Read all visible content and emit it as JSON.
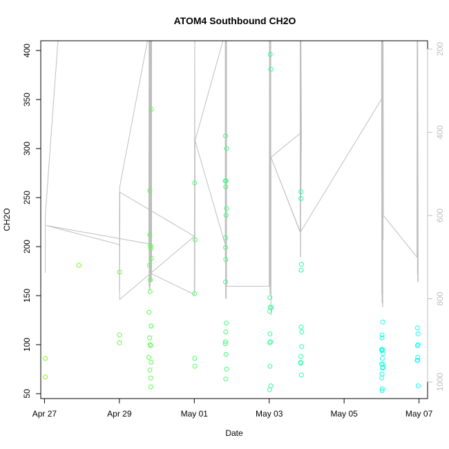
{
  "chart_data": {
    "type": "scatter",
    "title": "ATOM4 Southbound CH2O",
    "xlabel": "Date",
    "ylabel": "CH2O",
    "xlim": [
      "2018-04-26T21:36",
      "2018-05-07T05:30"
    ],
    "ylim": [
      45,
      410
    ],
    "x_ticks": [
      {
        "date": "2018-04-27",
        "label": "Apr 27"
      },
      {
        "date": "2018-04-29",
        "label": "Apr 29"
      },
      {
        "date": "2018-05-01",
        "label": "May 01"
      },
      {
        "date": "2018-05-03",
        "label": "May 03"
      },
      {
        "date": "2018-05-05",
        "label": "May 05"
      },
      {
        "date": "2018-05-07",
        "label": "May 07"
      }
    ],
    "y_ticks": [
      50,
      100,
      150,
      200,
      250,
      300,
      350,
      400
    ],
    "right_axis": {
      "reversed": true,
      "ylim": [
        1040,
        180
      ],
      "ticks": [
        200,
        400,
        600,
        800,
        1000
      ],
      "color": "#bebebe"
    },
    "grid": false,
    "legend": "none",
    "points_color_from": "#7cfc00",
    "points_color_to": "#00ffff",
    "points": [
      [
        "2018-04-27T00:30",
        86
      ],
      [
        "2018-04-27T00:30",
        67
      ],
      [
        "2018-04-27T22:00",
        181
      ],
      [
        "2018-04-29T00:00",
        110
      ],
      [
        "2018-04-29T00:00",
        102
      ],
      [
        "2018-04-29T00:10",
        174
      ],
      [
        "2018-04-29T18:50",
        87
      ],
      [
        "2018-04-29T19:00",
        133
      ],
      [
        "2018-04-29T19:20",
        181
      ],
      [
        "2018-04-29T19:20",
        107
      ],
      [
        "2018-04-29T19:30",
        212
      ],
      [
        "2018-04-29T19:30",
        257
      ],
      [
        "2018-04-29T19:30",
        74
      ],
      [
        "2018-04-29T19:40",
        154
      ],
      [
        "2018-04-29T19:40",
        100
      ],
      [
        "2018-04-29T19:50",
        201
      ],
      [
        "2018-04-29T19:50",
        166
      ],
      [
        "2018-04-29T20:00",
        99
      ],
      [
        "2018-04-29T20:10",
        198
      ],
      [
        "2018-04-29T20:10",
        66
      ],
      [
        "2018-04-29T20:10",
        57
      ],
      [
        "2018-04-29T20:20",
        119
      ],
      [
        "2018-04-29T20:20",
        119
      ],
      [
        "2018-04-29T20:20",
        82
      ],
      [
        "2018-04-29T20:30",
        188
      ],
      [
        "2018-04-29T20:30",
        340
      ],
      [
        "2018-05-01T00:10",
        265
      ],
      [
        "2018-05-01T00:10",
        152
      ],
      [
        "2018-05-01T00:10",
        86
      ],
      [
        "2018-05-01T00:20",
        78
      ],
      [
        "2018-05-01T00:30",
        207
      ],
      [
        "2018-05-01T19:50",
        267
      ],
      [
        "2018-05-01T19:50",
        101
      ],
      [
        "2018-05-01T20:00",
        313
      ],
      [
        "2018-05-01T20:00",
        209
      ],
      [
        "2018-05-01T20:00",
        199
      ],
      [
        "2018-05-01T20:00",
        164
      ],
      [
        "2018-05-01T20:00",
        103
      ],
      [
        "2018-05-01T20:10",
        261
      ],
      [
        "2018-05-01T20:10",
        187
      ],
      [
        "2018-05-01T20:10",
        113
      ],
      [
        "2018-05-01T20:10",
        65
      ],
      [
        "2018-05-01T20:20",
        90
      ],
      [
        "2018-05-01T20:20",
        267
      ],
      [
        "2018-05-01T20:20",
        232
      ],
      [
        "2018-05-01T20:30",
        122
      ],
      [
        "2018-05-01T20:40",
        300
      ],
      [
        "2018-05-01T20:40",
        239
      ],
      [
        "2018-05-01T20:40",
        75
      ],
      [
        "2018-05-03T00:10",
        54
      ],
      [
        "2018-05-03T00:20",
        102
      ],
      [
        "2018-05-03T00:20",
        134
      ],
      [
        "2018-05-03T00:30",
        148
      ],
      [
        "2018-05-03T00:30",
        111
      ],
      [
        "2018-05-03T00:30",
        78
      ],
      [
        "2018-05-03T00:40",
        396
      ],
      [
        "2018-05-03T00:40",
        138
      ],
      [
        "2018-05-03T00:50",
        103
      ],
      [
        "2018-05-03T01:00",
        381
      ],
      [
        "2018-05-03T01:00",
        58
      ],
      [
        "2018-05-03T01:20",
        138
      ],
      [
        "2018-05-03T20:10",
        81
      ],
      [
        "2018-05-03T20:10",
        82
      ],
      [
        "2018-05-03T20:20",
        256
      ],
      [
        "2018-05-03T20:20",
        249
      ],
      [
        "2018-05-03T20:20",
        88
      ],
      [
        "2018-05-03T20:30",
        176
      ],
      [
        "2018-05-03T20:30",
        118
      ],
      [
        "2018-05-03T20:40",
        182
      ],
      [
        "2018-05-03T20:40",
        69
      ],
      [
        "2018-05-03T20:50",
        113
      ],
      [
        "2018-05-03T20:50",
        98
      ],
      [
        "2018-05-06T00:00",
        95
      ],
      [
        "2018-05-06T00:00",
        80
      ],
      [
        "2018-05-06T00:10",
        94
      ],
      [
        "2018-05-06T00:10",
        66
      ],
      [
        "2018-05-06T00:20",
        110
      ],
      [
        "2018-05-06T00:20",
        107
      ],
      [
        "2018-05-06T00:20",
        70
      ],
      [
        "2018-05-06T00:20",
        53
      ],
      [
        "2018-05-06T00:30",
        86
      ],
      [
        "2018-05-06T00:30",
        55
      ],
      [
        "2018-05-06T00:40",
        95
      ],
      [
        "2018-05-06T00:40",
        76
      ],
      [
        "2018-05-06T00:50",
        123
      ],
      [
        "2018-05-06T00:50",
        80
      ],
      [
        "2018-05-06T01:00",
        91
      ],
      [
        "2018-05-06T01:00",
        77
      ],
      [
        "2018-05-06T22:50",
        84
      ],
      [
        "2018-05-06T23:00",
        117
      ],
      [
        "2018-05-06T23:00",
        99
      ],
      [
        "2018-05-06T23:10",
        84
      ],
      [
        "2018-05-06T23:10",
        87
      ],
      [
        "2018-05-06T23:20",
        111
      ],
      [
        "2018-05-06T23:30",
        100
      ],
      [
        "2018-05-06T23:30",
        58
      ]
    ],
    "pressure_track": [
      [
        "2018-04-27T00:30",
        738
      ],
      [
        "2018-04-27T00:30",
        600
      ],
      [
        "2018-04-27T09:00",
        160
      ],
      [
        "2018-04-29T19:00",
        160
      ],
      [
        "2018-04-29T18:50",
        668
      ],
      [
        "2018-04-27T01:00",
        624
      ],
      [
        "2018-04-29T00:00",
        670
      ],
      [
        "2018-04-29T00:00",
        782
      ],
      [
        "2018-04-29T00:00",
        610
      ],
      [
        "2018-04-29T00:10",
        532
      ],
      [
        "2018-04-29T00:10",
        738
      ],
      [
        "2018-04-29T00:20",
        544
      ],
      [
        "2018-05-01T00:00",
        650
      ],
      [
        "2018-04-29T00:10",
        802
      ],
      [
        "2018-04-29T00:10",
        532
      ],
      [
        "2018-04-29T19:00",
        160
      ],
      [
        "2018-04-29T19:00",
        770
      ],
      [
        "2018-04-29T19:10",
        160
      ],
      [
        "2018-04-29T19:10",
        780
      ],
      [
        "2018-04-29T19:20",
        160
      ],
      [
        "2018-04-29T19:20",
        780
      ],
      [
        "2018-04-29T19:30",
        160
      ],
      [
        "2018-04-29T19:30",
        780
      ],
      [
        "2018-04-29T19:40",
        160
      ],
      [
        "2018-04-29T19:40",
        770
      ],
      [
        "2018-04-29T19:50",
        160
      ],
      [
        "2018-04-29T19:50",
        760
      ],
      [
        "2018-04-29T20:00",
        160
      ],
      [
        "2018-04-29T20:00",
        760
      ],
      [
        "2018-04-29T20:10",
        160
      ],
      [
        "2018-04-29T20:10",
        760
      ],
      [
        "2018-04-29T20:20",
        160
      ],
      [
        "2018-04-29T20:20",
        760
      ],
      [
        "2018-04-29T20:30",
        160
      ],
      [
        "2018-04-29T20:30",
        760
      ],
      [
        "2018-04-29T20:40",
        160
      ],
      [
        "2018-04-29T20:40",
        740
      ],
      [
        "2018-05-01T00:00",
        790
      ],
      [
        "2018-05-01T00:10",
        350
      ],
      [
        "2018-05-01T00:20",
        160
      ],
      [
        "2018-05-01T00:20",
        780
      ],
      [
        "2018-05-01T00:30",
        420
      ],
      [
        "2018-05-01T19:40",
        668
      ],
      [
        "2018-05-01T00:30",
        420
      ],
      [
        "2018-05-01T19:50",
        160
      ],
      [
        "2018-05-01T19:50",
        700
      ],
      [
        "2018-05-01T20:00",
        160
      ],
      [
        "2018-05-01T20:00",
        800
      ],
      [
        "2018-05-01T20:10",
        160
      ],
      [
        "2018-05-01T20:10",
        760
      ],
      [
        "2018-05-01T20:20",
        160
      ],
      [
        "2018-05-01T20:20",
        700
      ],
      [
        "2018-05-01T20:30",
        160
      ],
      [
        "2018-05-01T20:30",
        800
      ],
      [
        "2018-05-01T20:40",
        160
      ],
      [
        "2018-05-01T20:40",
        770
      ],
      [
        "2018-05-03T00:00",
        770
      ],
      [
        "2018-05-03T00:10",
        160
      ],
      [
        "2018-05-03T00:20",
        770
      ],
      [
        "2018-05-03T00:20",
        160
      ],
      [
        "2018-05-03T00:30",
        790
      ],
      [
        "2018-05-03T00:30",
        160
      ],
      [
        "2018-05-03T00:40",
        790
      ],
      [
        "2018-05-03T00:40",
        160
      ],
      [
        "2018-05-03T00:50",
        790
      ],
      [
        "2018-05-03T00:50",
        160
      ],
      [
        "2018-05-03T01:00",
        790
      ],
      [
        "2018-05-03T01:00",
        160
      ],
      [
        "2018-05-03T01:10",
        840
      ],
      [
        "2018-05-03T01:10",
        460
      ],
      [
        "2018-05-03T19:50",
        640
      ],
      [
        "2018-05-03T19:50",
        160
      ],
      [
        "2018-05-03T20:00",
        700
      ],
      [
        "2018-05-03T20:00",
        160
      ],
      [
        "2018-05-03T20:10",
        700
      ],
      [
        "2018-05-03T20:10",
        160
      ],
      [
        "2018-05-03T20:20",
        560
      ],
      [
        "2018-05-03T20:40",
        400
      ],
      [
        "2018-05-03T20:20",
        160
      ],
      [
        "2018-05-03T20:40",
        400
      ],
      [
        "2018-05-03T01:10",
        460
      ],
      [
        "2018-05-03T20:00",
        640
      ],
      [
        "2018-05-06T00:00",
        320
      ],
      [
        "2018-05-06T00:00",
        160
      ],
      [
        "2018-05-06T00:10",
        790
      ],
      [
        "2018-05-06T00:10",
        160
      ],
      [
        "2018-05-06T00:20",
        810
      ],
      [
        "2018-05-06T00:20",
        160
      ],
      [
        "2018-05-06T00:30",
        810
      ],
      [
        "2018-05-06T00:30",
        160
      ],
      [
        "2018-05-06T00:40",
        820
      ],
      [
        "2018-05-06T00:40",
        160
      ],
      [
        "2018-05-06T00:50",
        820
      ],
      [
        "2018-05-06T00:50",
        160
      ],
      [
        "2018-05-06T01:00",
        660
      ],
      [
        "2018-05-06T01:00",
        160
      ],
      [
        "2018-05-06T01:10",
        600
      ],
      [
        "2018-05-06T22:40",
        700
      ],
      [
        "2018-05-06T22:50",
        160
      ],
      [
        "2018-05-06T23:00",
        740
      ],
      [
        "2018-05-06T23:00",
        160
      ],
      [
        "2018-05-06T23:10",
        760
      ],
      [
        "2018-05-06T23:10",
        160
      ],
      [
        "2018-05-06T23:30",
        760
      ]
    ]
  }
}
